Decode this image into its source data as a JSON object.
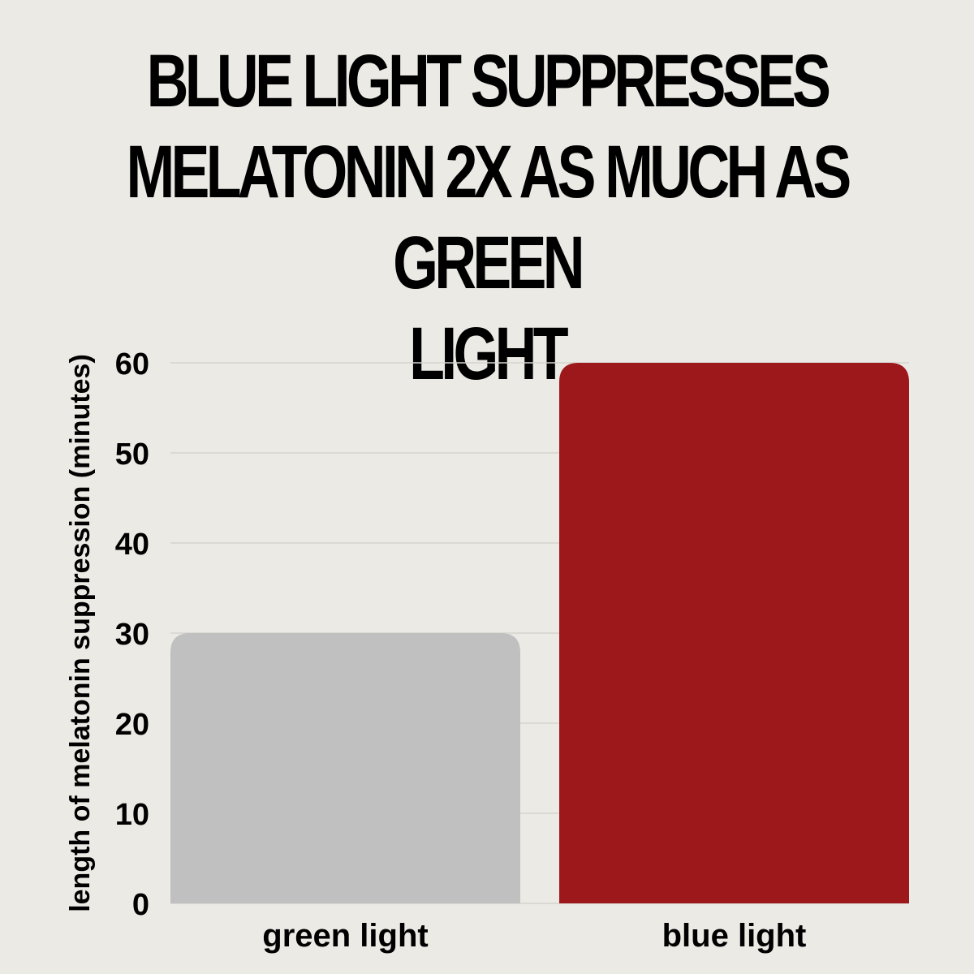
{
  "chart_data": {
    "type": "bar",
    "title_lines": [
      "BLUE LIGHT SUPPRESSES",
      "MELATONIN 2X AS MUCH AS GREEN",
      "LIGHT"
    ],
    "categories": [
      "green light",
      "blue light"
    ],
    "values": [
      30,
      60
    ],
    "bar_colors": [
      "#c0c0c0",
      "#9d181b"
    ],
    "xlabel": "",
    "ylabel": "length of melatonin suppression (minutes)",
    "ylim": [
      0,
      60
    ],
    "yticks": [
      0,
      10,
      20,
      30,
      40,
      50,
      60
    ],
    "grid": true,
    "grid_color": "#d4d3ce",
    "legend": "none"
  }
}
